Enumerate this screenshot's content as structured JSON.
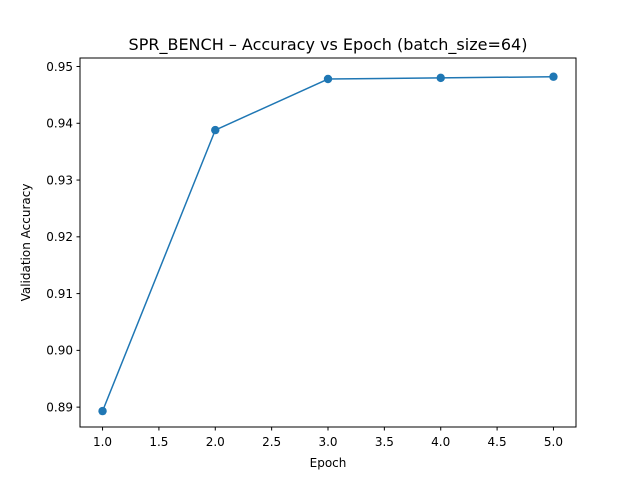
{
  "chart_data": {
    "type": "line",
    "title": "SPR_BENCH – Accuracy vs Epoch (batch_size=64)",
    "xlabel": "Epoch",
    "ylabel": "Validation Accuracy",
    "xlim": [
      0.8,
      5.2
    ],
    "ylim": [
      0.8865,
      0.9515
    ],
    "x_ticks": [
      1.0,
      1.5,
      2.0,
      2.5,
      3.0,
      3.5,
      4.0,
      4.5,
      5.0
    ],
    "x_tick_labels": [
      "1.0",
      "1.5",
      "2.0",
      "2.5",
      "3.0",
      "3.5",
      "4.0",
      "4.5",
      "5.0"
    ],
    "y_ticks": [
      0.89,
      0.9,
      0.91,
      0.92,
      0.93,
      0.94,
      0.95
    ],
    "y_tick_labels": [
      "0.89",
      "0.90",
      "0.91",
      "0.92",
      "0.93",
      "0.94",
      "0.95"
    ],
    "grid": false,
    "legend": "none",
    "series": [
      {
        "color": "#1f77b4",
        "marker": "circle",
        "x": [
          1,
          2,
          3,
          4,
          5
        ],
        "y": [
          0.8893,
          0.9388,
          0.9478,
          0.948,
          0.9482
        ]
      }
    ]
  }
}
